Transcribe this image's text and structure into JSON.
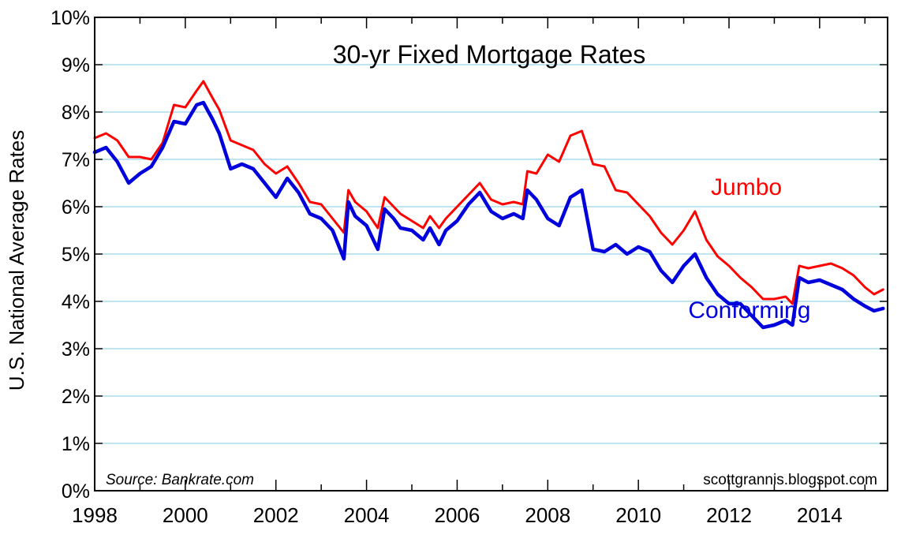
{
  "chart_data": {
    "type": "line",
    "title": "30-yr Fixed Mortgage Rates",
    "ylabel": "U.S. National Average Rates",
    "xlabel": "",
    "ylim": [
      0,
      10
    ],
    "xlim": [
      1998,
      2015.5
    ],
    "y_ticks": [
      "0%",
      "1%",
      "2%",
      "3%",
      "4%",
      "5%",
      "6%",
      "7%",
      "8%",
      "9%",
      "10%"
    ],
    "x_ticks": [
      "1998",
      "2000",
      "2002",
      "2004",
      "2006",
      "2008",
      "2010",
      "2012",
      "2014"
    ],
    "grid": true,
    "source": "Source: Bankrate.com",
    "credit": "scottgrannis.blogspot.com",
    "series": [
      {
        "name": "Jumbo",
        "color": "#ff0000",
        "points": [
          [
            1998,
            7.45
          ],
          [
            1998.25,
            7.55
          ],
          [
            1998.5,
            7.4
          ],
          [
            1998.75,
            7.05
          ],
          [
            1999,
            7.05
          ],
          [
            1999.25,
            7.0
          ],
          [
            1999.5,
            7.35
          ],
          [
            1999.75,
            8.15
          ],
          [
            2000,
            8.1
          ],
          [
            2000.25,
            8.45
          ],
          [
            2000.4,
            8.65
          ],
          [
            2000.6,
            8.3
          ],
          [
            2000.75,
            8.05
          ],
          [
            2001,
            7.4
          ],
          [
            2001.25,
            7.3
          ],
          [
            2001.5,
            7.2
          ],
          [
            2001.75,
            6.9
          ],
          [
            2002,
            6.7
          ],
          [
            2002.25,
            6.85
          ],
          [
            2002.5,
            6.5
          ],
          [
            2002.75,
            6.1
          ],
          [
            2003,
            6.05
          ],
          [
            2003.25,
            5.75
          ],
          [
            2003.5,
            5.45
          ],
          [
            2003.6,
            6.35
          ],
          [
            2003.75,
            6.1
          ],
          [
            2004,
            5.9
          ],
          [
            2004.25,
            5.55
          ],
          [
            2004.4,
            6.2
          ],
          [
            2004.6,
            6.0
          ],
          [
            2004.75,
            5.85
          ],
          [
            2005,
            5.7
          ],
          [
            2005.25,
            5.55
          ],
          [
            2005.4,
            5.8
          ],
          [
            2005.6,
            5.55
          ],
          [
            2005.75,
            5.75
          ],
          [
            2006,
            6.0
          ],
          [
            2006.25,
            6.25
          ],
          [
            2006.5,
            6.5
          ],
          [
            2006.75,
            6.15
          ],
          [
            2007,
            6.05
          ],
          [
            2007.25,
            6.1
          ],
          [
            2007.45,
            6.05
          ],
          [
            2007.55,
            6.75
          ],
          [
            2007.75,
            6.7
          ],
          [
            2008,
            7.1
          ],
          [
            2008.25,
            6.95
          ],
          [
            2008.5,
            7.5
          ],
          [
            2008.75,
            7.6
          ],
          [
            2009,
            6.9
          ],
          [
            2009.25,
            6.85
          ],
          [
            2009.5,
            6.35
          ],
          [
            2009.75,
            6.3
          ],
          [
            2010,
            6.05
          ],
          [
            2010.25,
            5.8
          ],
          [
            2010.5,
            5.45
          ],
          [
            2010.75,
            5.2
          ],
          [
            2011,
            5.5
          ],
          [
            2011.25,
            5.9
          ],
          [
            2011.5,
            5.3
          ],
          [
            2011.75,
            4.95
          ],
          [
            2012,
            4.75
          ],
          [
            2012.25,
            4.5
          ],
          [
            2012.5,
            4.3
          ],
          [
            2012.75,
            4.05
          ],
          [
            2013,
            4.05
          ],
          [
            2013.25,
            4.1
          ],
          [
            2013.4,
            3.95
          ],
          [
            2013.55,
            4.75
          ],
          [
            2013.75,
            4.7
          ],
          [
            2014,
            4.75
          ],
          [
            2014.25,
            4.8
          ],
          [
            2014.5,
            4.7
          ],
          [
            2014.75,
            4.55
          ],
          [
            2015,
            4.3
          ],
          [
            2015.2,
            4.15
          ],
          [
            2015.4,
            4.25
          ]
        ]
      },
      {
        "name": "Conforming",
        "color": "#0000dd",
        "points": [
          [
            1998,
            7.15
          ],
          [
            1998.25,
            7.25
          ],
          [
            1998.5,
            6.95
          ],
          [
            1998.75,
            6.5
          ],
          [
            1999,
            6.7
          ],
          [
            1999.25,
            6.85
          ],
          [
            1999.5,
            7.25
          ],
          [
            1999.75,
            7.8
          ],
          [
            2000,
            7.75
          ],
          [
            2000.25,
            8.15
          ],
          [
            2000.4,
            8.2
          ],
          [
            2000.6,
            7.85
          ],
          [
            2000.75,
            7.55
          ],
          [
            2001,
            6.8
          ],
          [
            2001.25,
            6.9
          ],
          [
            2001.5,
            6.8
          ],
          [
            2001.75,
            6.5
          ],
          [
            2002,
            6.2
          ],
          [
            2002.25,
            6.6
          ],
          [
            2002.5,
            6.3
          ],
          [
            2002.75,
            5.85
          ],
          [
            2003,
            5.75
          ],
          [
            2003.25,
            5.5
          ],
          [
            2003.5,
            4.9
          ],
          [
            2003.6,
            6.1
          ],
          [
            2003.75,
            5.8
          ],
          [
            2004,
            5.6
          ],
          [
            2004.25,
            5.1
          ],
          [
            2004.4,
            5.95
          ],
          [
            2004.6,
            5.75
          ],
          [
            2004.75,
            5.55
          ],
          [
            2005,
            5.5
          ],
          [
            2005.25,
            5.3
          ],
          [
            2005.4,
            5.55
          ],
          [
            2005.6,
            5.2
          ],
          [
            2005.75,
            5.5
          ],
          [
            2006,
            5.7
          ],
          [
            2006.25,
            6.05
          ],
          [
            2006.5,
            6.3
          ],
          [
            2006.75,
            5.9
          ],
          [
            2007,
            5.75
          ],
          [
            2007.25,
            5.85
          ],
          [
            2007.45,
            5.75
          ],
          [
            2007.55,
            6.35
          ],
          [
            2007.75,
            6.15
          ],
          [
            2008,
            5.75
          ],
          [
            2008.25,
            5.6
          ],
          [
            2008.5,
            6.2
          ],
          [
            2008.75,
            6.35
          ],
          [
            2009,
            5.1
          ],
          [
            2009.25,
            5.05
          ],
          [
            2009.5,
            5.2
          ],
          [
            2009.75,
            5.0
          ],
          [
            2010,
            5.15
          ],
          [
            2010.25,
            5.05
          ],
          [
            2010.5,
            4.65
          ],
          [
            2010.75,
            4.4
          ],
          [
            2011,
            4.75
          ],
          [
            2011.25,
            5.0
          ],
          [
            2011.5,
            4.5
          ],
          [
            2011.75,
            4.15
          ],
          [
            2012,
            3.95
          ],
          [
            2012.25,
            3.95
          ],
          [
            2012.5,
            3.7
          ],
          [
            2012.75,
            3.45
          ],
          [
            2013,
            3.5
          ],
          [
            2013.25,
            3.6
          ],
          [
            2013.4,
            3.5
          ],
          [
            2013.55,
            4.5
          ],
          [
            2013.75,
            4.4
          ],
          [
            2014,
            4.45
          ],
          [
            2014.25,
            4.35
          ],
          [
            2014.5,
            4.25
          ],
          [
            2014.75,
            4.05
          ],
          [
            2015,
            3.9
          ],
          [
            2015.2,
            3.8
          ],
          [
            2015.4,
            3.85
          ]
        ]
      }
    ],
    "annotations": [
      {
        "text": "Jumbo",
        "series": "Jumbo",
        "color": "#ff0000",
        "x": 2011.6,
        "y": 6.25
      },
      {
        "text": "Conforming",
        "series": "Conforming",
        "color": "#0000dd",
        "x": 2011.1,
        "y": 3.65
      }
    ]
  }
}
